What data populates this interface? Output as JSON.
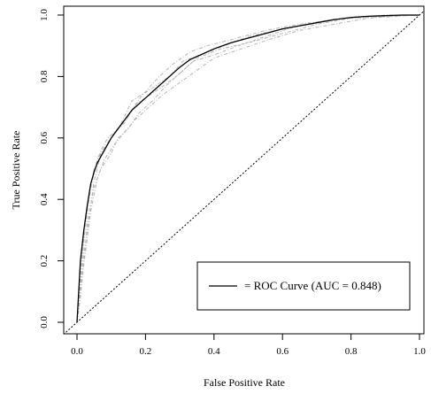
{
  "chart_data": {
    "type": "line",
    "xlabel": "False Positive Rate",
    "ylabel": "True Positive Rate",
    "xlim": [
      0,
      1
    ],
    "ylim": [
      0,
      1
    ],
    "x_ticks": [
      "0.0",
      "0.2",
      "0.4",
      "0.6",
      "0.8",
      "1.0"
    ],
    "y_ticks": [
      "0.0",
      "0.2",
      "0.4",
      "0.6",
      "0.8",
      "1.0"
    ],
    "grid": false,
    "legend": {
      "placement": "bottom-right",
      "label": "= ROC Curve (AUC = 0.848)"
    },
    "series": [
      {
        "role": "main-curve",
        "color": "#000000",
        "x": [
          0,
          0.005,
          0.01,
          0.015,
          0.02,
          0.03,
          0.04,
          0.05,
          0.06,
          0.08,
          0.1,
          0.12,
          0.14,
          0.16,
          0.18,
          0.2,
          0.22,
          0.25,
          0.28,
          0.3,
          0.33,
          0.36,
          0.4,
          0.45,
          0.5,
          0.55,
          0.6,
          0.65,
          0.7,
          0.75,
          0.8,
          0.85,
          0.9,
          0.95,
          1.0
        ],
        "y": [
          0,
          0.1,
          0.2,
          0.25,
          0.3,
          0.38,
          0.45,
          0.49,
          0.52,
          0.56,
          0.6,
          0.63,
          0.66,
          0.69,
          0.71,
          0.73,
          0.75,
          0.78,
          0.81,
          0.83,
          0.855,
          0.87,
          0.89,
          0.91,
          0.925,
          0.94,
          0.955,
          0.965,
          0.975,
          0.985,
          0.992,
          0.996,
          0.998,
          1.0,
          1.0
        ]
      },
      {
        "role": "fold-curve",
        "color": "#b5b5b5",
        "x": [
          0,
          0.01,
          0.02,
          0.04,
          0.06,
          0.08,
          0.1,
          0.13,
          0.16,
          0.2,
          0.24,
          0.28,
          0.33,
          0.38,
          0.45,
          0.55,
          0.65,
          0.75,
          0.85,
          1.0
        ],
        "y": [
          0,
          0.17,
          0.27,
          0.44,
          0.53,
          0.57,
          0.6,
          0.65,
          0.72,
          0.75,
          0.8,
          0.84,
          0.88,
          0.9,
          0.92,
          0.95,
          0.97,
          0.985,
          0.995,
          1.0
        ]
      },
      {
        "role": "fold-curve",
        "color": "#b5b5b5",
        "x": [
          0,
          0.01,
          0.02,
          0.03,
          0.05,
          0.07,
          0.1,
          0.12,
          0.15,
          0.18,
          0.22,
          0.26,
          0.3,
          0.35,
          0.42,
          0.5,
          0.6,
          0.7,
          0.8,
          1.0
        ],
        "y": [
          0,
          0.08,
          0.19,
          0.32,
          0.44,
          0.5,
          0.55,
          0.6,
          0.63,
          0.68,
          0.72,
          0.77,
          0.81,
          0.86,
          0.89,
          0.91,
          0.94,
          0.97,
          0.99,
          1.0
        ]
      },
      {
        "role": "fold-curve",
        "color": "#b5b5b5",
        "x": [
          0,
          0.01,
          0.02,
          0.03,
          0.05,
          0.07,
          0.09,
          0.12,
          0.15,
          0.19,
          0.23,
          0.27,
          0.31,
          0.36,
          0.43,
          0.5,
          0.58,
          0.68,
          0.78,
          0.9,
          1.0
        ],
        "y": [
          0,
          0.14,
          0.26,
          0.37,
          0.5,
          0.56,
          0.6,
          0.63,
          0.67,
          0.74,
          0.77,
          0.8,
          0.85,
          0.87,
          0.9,
          0.93,
          0.95,
          0.97,
          0.99,
          1.0,
          1.0
        ]
      },
      {
        "role": "fold-curve",
        "color": "#b5b5b5",
        "x": [
          0,
          0.005,
          0.015,
          0.025,
          0.04,
          0.06,
          0.08,
          0.11,
          0.14,
          0.17,
          0.21,
          0.25,
          0.3,
          0.35,
          0.4,
          0.48,
          0.56,
          0.65,
          0.75,
          0.85,
          1.0
        ],
        "y": [
          0,
          0.06,
          0.15,
          0.23,
          0.36,
          0.47,
          0.53,
          0.58,
          0.62,
          0.66,
          0.7,
          0.74,
          0.78,
          0.82,
          0.86,
          0.89,
          0.92,
          0.95,
          0.97,
          0.99,
          1.0
        ]
      },
      {
        "role": "fold-curve",
        "color": "#b5b5b5",
        "x": [
          0,
          0.01,
          0.02,
          0.035,
          0.05,
          0.07,
          0.09,
          0.11,
          0.14,
          0.17,
          0.2,
          0.24,
          0.29,
          0.34,
          0.4,
          0.47,
          0.55,
          0.63,
          0.72,
          0.82,
          1.0
        ],
        "y": [
          0,
          0.12,
          0.22,
          0.34,
          0.46,
          0.55,
          0.58,
          0.62,
          0.65,
          0.71,
          0.73,
          0.76,
          0.8,
          0.85,
          0.87,
          0.9,
          0.93,
          0.96,
          0.98,
          0.995,
          1.0
        ]
      },
      {
        "role": "diagonal",
        "color": "#000000",
        "x": [
          -0.04,
          1.04
        ],
        "y": [
          -0.04,
          1.04
        ]
      }
    ]
  }
}
